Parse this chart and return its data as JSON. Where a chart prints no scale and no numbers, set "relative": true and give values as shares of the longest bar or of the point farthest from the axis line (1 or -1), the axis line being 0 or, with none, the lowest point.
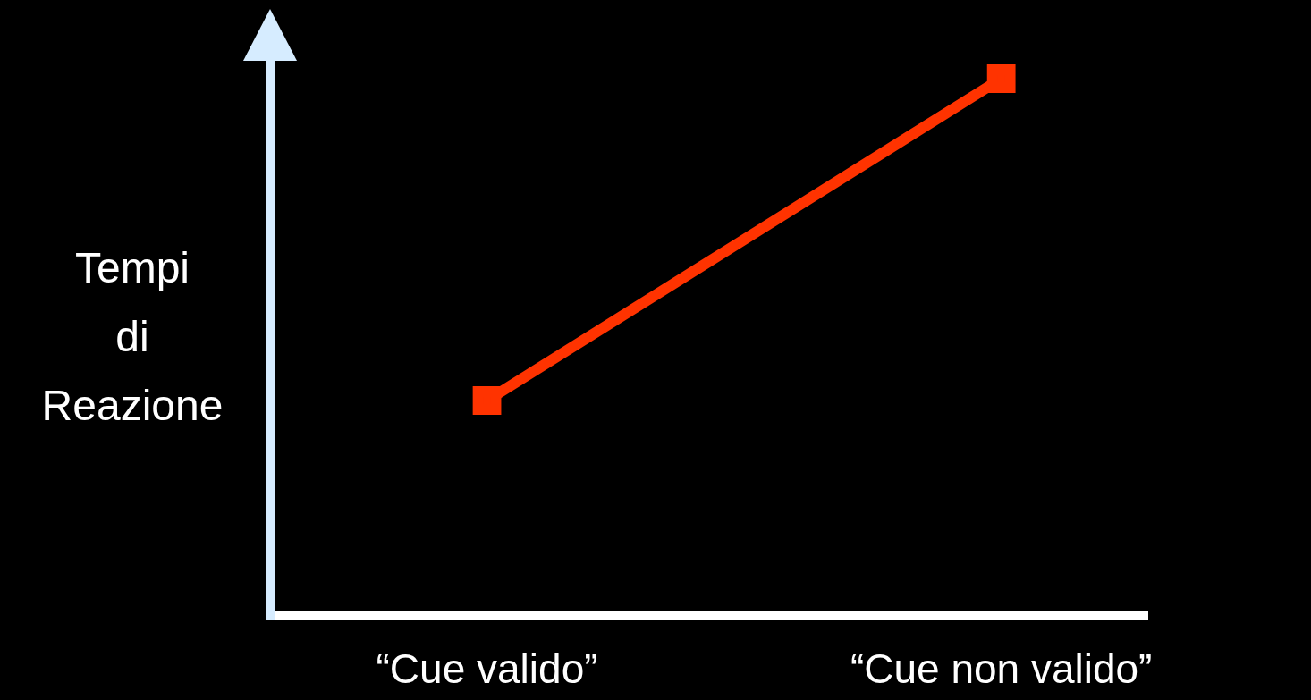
{
  "chart_data": {
    "type": "line",
    "relative": true,
    "ylabel": "Tempi di Reazione",
    "categories": [
      "“Cue valido”",
      "“Cue non valido”"
    ],
    "series": [
      {
        "color": "#ff3300",
        "values": [
          0.4,
          1
        ]
      }
    ],
    "marker": "square",
    "line_style": "solid",
    "grid": false,
    "legend": false
  }
}
